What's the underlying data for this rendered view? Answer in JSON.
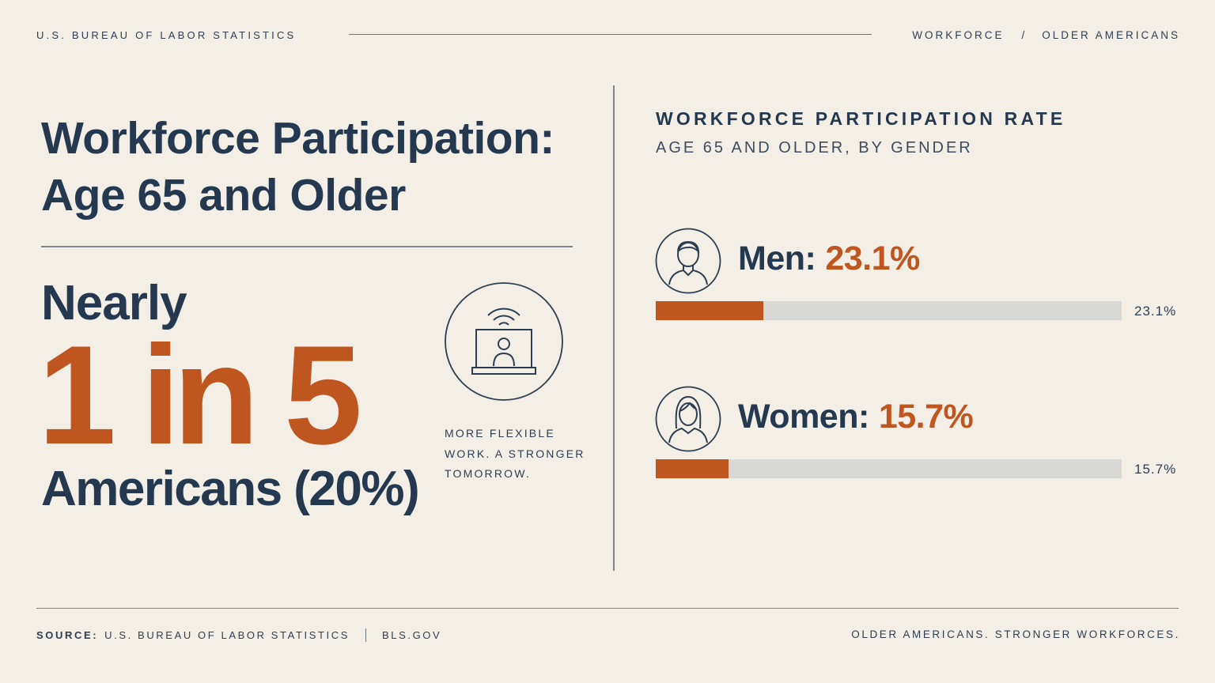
{
  "header": {
    "agency": "U.S. BUREAU OF LABOR STATISTICS",
    "breadcrumb": [
      "WORKFORCE",
      "OLDER AMERICANS"
    ],
    "breadcrumb_separator": "/"
  },
  "left": {
    "title_line1": "Workforce Participation:",
    "title_line2": "Age 65 and Older",
    "stat_prefix": "Nearly",
    "stat_big": "1 in 5",
    "stat_suffix": "Americans (20%)",
    "tagline_lines": [
      "MORE FLEXIBLE",
      "WORK. A STRONGER",
      "TOMORROW."
    ],
    "icon": "remote-work-laptop-icon"
  },
  "chart_data": {
    "type": "bar",
    "orientation": "horizontal",
    "title": "WORKFORCE PARTICIPATION RATE",
    "subtitle": "AGE 65 AND OLDER, BY GENDER",
    "categories": [
      "Men",
      "Women"
    ],
    "values": [
      23.1,
      15.7
    ],
    "value_labels": [
      "23.1%",
      "15.7%"
    ],
    "category_labels": [
      "Men:",
      "Women:"
    ],
    "icons": [
      "man-avatar-icon",
      "woman-avatar-icon"
    ],
    "xlim": [
      0,
      100
    ],
    "grid": false,
    "colors": {
      "fill": "#c0561f",
      "track": "#d8d8d5"
    }
  },
  "footer": {
    "source_label": "SOURCE:",
    "source_text": "U.S. BUREAU OF LABOR STATISTICS",
    "site": "BLS.GOV",
    "slogan": "OLDER AMERICANS. STRONGER WORKFORCES."
  },
  "colors": {
    "background": "#f3efe7",
    "navy": "#24384f",
    "accent": "#c0561f"
  }
}
